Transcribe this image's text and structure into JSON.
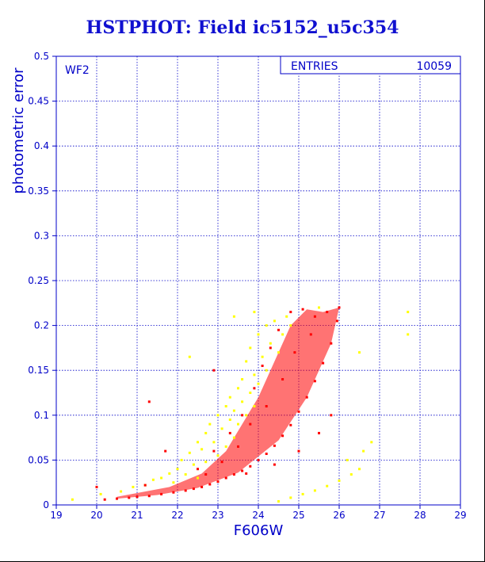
{
  "chart_data": {
    "type": "scatter",
    "title": "HSTPHOT: Field ic5152_u5c354",
    "xlabel": "F606W",
    "ylabel": "photometric error",
    "panel_label": "WF2",
    "stats_box": {
      "label": "ENTRIES",
      "value": "10059"
    },
    "xlim": [
      19,
      29
    ],
    "ylim": [
      0,
      0.5
    ],
    "x_ticks": [
      "19",
      "20",
      "21",
      "22",
      "23",
      "24",
      "25",
      "26",
      "27",
      "28",
      "29"
    ],
    "y_ticks": [
      "0",
      "0.05",
      "0.1",
      "0.15",
      "0.2",
      "0.25",
      "0.3",
      "0.35",
      "0.4",
      "0.45",
      "0.5"
    ],
    "grid": true,
    "series": [
      {
        "color": "#ffff00",
        "points": [
          [
            19.4,
            0.006
          ],
          [
            20.1,
            0.012
          ],
          [
            20.6,
            0.015
          ],
          [
            20.9,
            0.02
          ],
          [
            21.2,
            0.022
          ],
          [
            21.4,
            0.028
          ],
          [
            21.6,
            0.03
          ],
          [
            21.8,
            0.035
          ],
          [
            21.9,
            0.025
          ],
          [
            22.0,
            0.04
          ],
          [
            22.1,
            0.05
          ],
          [
            22.2,
            0.034
          ],
          [
            22.3,
            0.058
          ],
          [
            22.4,
            0.045
          ],
          [
            22.5,
            0.07
          ],
          [
            22.5,
            0.03
          ],
          [
            22.6,
            0.062
          ],
          [
            22.7,
            0.08
          ],
          [
            22.7,
            0.048
          ],
          [
            22.8,
            0.09
          ],
          [
            22.9,
            0.07
          ],
          [
            23.0,
            0.1
          ],
          [
            23.0,
            0.055
          ],
          [
            23.1,
            0.085
          ],
          [
            23.2,
            0.11
          ],
          [
            23.2,
            0.065
          ],
          [
            23.3,
            0.095
          ],
          [
            23.3,
            0.12
          ],
          [
            23.4,
            0.075
          ],
          [
            23.4,
            0.105
          ],
          [
            23.5,
            0.13
          ],
          [
            23.5,
            0.09
          ],
          [
            23.6,
            0.115
          ],
          [
            23.6,
            0.14
          ],
          [
            23.7,
            0.1
          ],
          [
            23.7,
            0.16
          ],
          [
            23.8,
            0.125
          ],
          [
            23.8,
            0.175
          ],
          [
            23.9,
            0.11
          ],
          [
            23.9,
            0.145
          ],
          [
            24.0,
            0.19
          ],
          [
            24.0,
            0.135
          ],
          [
            24.1,
            0.165
          ],
          [
            24.2,
            0.2
          ],
          [
            24.2,
            0.15
          ],
          [
            24.3,
            0.18
          ],
          [
            24.4,
            0.205
          ],
          [
            24.5,
            0.17
          ],
          [
            24.6,
            0.19
          ],
          [
            24.7,
            0.21
          ],
          [
            24.8,
            0.2
          ],
          [
            22.3,
            0.165
          ],
          [
            23.4,
            0.21
          ],
          [
            23.9,
            0.215
          ],
          [
            24.5,
            0.004
          ],
          [
            24.8,
            0.008
          ],
          [
            25.1,
            0.012
          ],
          [
            25.4,
            0.016
          ],
          [
            25.7,
            0.021
          ],
          [
            26.0,
            0.027
          ],
          [
            26.3,
            0.034
          ],
          [
            26.5,
            0.04
          ],
          [
            26.6,
            0.06
          ],
          [
            26.8,
            0.07
          ],
          [
            26.2,
            0.05
          ],
          [
            27.7,
            0.215
          ],
          [
            27.7,
            0.19
          ],
          [
            25.5,
            0.22
          ],
          [
            26.5,
            0.17
          ]
        ]
      },
      {
        "color": "#ff0000",
        "points": [
          [
            20.2,
            0.006
          ],
          [
            20.5,
            0.007
          ],
          [
            20.8,
            0.008
          ],
          [
            21.0,
            0.009
          ],
          [
            21.3,
            0.01
          ],
          [
            21.6,
            0.012
          ],
          [
            21.9,
            0.014
          ],
          [
            22.2,
            0.016
          ],
          [
            22.4,
            0.018
          ],
          [
            22.6,
            0.02
          ],
          [
            22.8,
            0.023
          ],
          [
            23.0,
            0.026
          ],
          [
            23.2,
            0.03
          ],
          [
            23.4,
            0.034
          ],
          [
            23.6,
            0.038
          ],
          [
            23.8,
            0.043
          ],
          [
            24.0,
            0.05
          ],
          [
            24.2,
            0.057
          ],
          [
            24.4,
            0.066
          ],
          [
            24.6,
            0.077
          ],
          [
            24.8,
            0.089
          ],
          [
            25.0,
            0.104
          ],
          [
            25.2,
            0.12
          ],
          [
            25.4,
            0.138
          ],
          [
            25.6,
            0.158
          ],
          [
            25.8,
            0.18
          ],
          [
            25.95,
            0.205
          ],
          [
            26.0,
            0.22
          ],
          [
            22.5,
            0.04
          ],
          [
            22.9,
            0.06
          ],
          [
            23.3,
            0.08
          ],
          [
            23.6,
            0.1
          ],
          [
            23.9,
            0.13
          ],
          [
            24.1,
            0.155
          ],
          [
            24.3,
            0.175
          ],
          [
            24.5,
            0.195
          ],
          [
            24.8,
            0.215
          ],
          [
            25.1,
            0.218
          ],
          [
            25.4,
            0.21
          ],
          [
            25.7,
            0.215
          ],
          [
            24.9,
            0.17
          ],
          [
            25.3,
            0.19
          ],
          [
            24.6,
            0.14
          ],
          [
            24.2,
            0.11
          ],
          [
            23.8,
            0.09
          ],
          [
            23.5,
            0.065
          ],
          [
            23.1,
            0.048
          ],
          [
            22.7,
            0.034
          ],
          [
            21.7,
            0.06
          ],
          [
            21.3,
            0.115
          ],
          [
            22.9,
            0.15
          ],
          [
            23.7,
            0.035
          ],
          [
            24.4,
            0.045
          ],
          [
            25.0,
            0.06
          ],
          [
            25.5,
            0.08
          ],
          [
            25.8,
            0.1
          ],
          [
            21.2,
            0.022
          ],
          [
            20.0,
            0.02
          ]
        ]
      }
    ]
  }
}
